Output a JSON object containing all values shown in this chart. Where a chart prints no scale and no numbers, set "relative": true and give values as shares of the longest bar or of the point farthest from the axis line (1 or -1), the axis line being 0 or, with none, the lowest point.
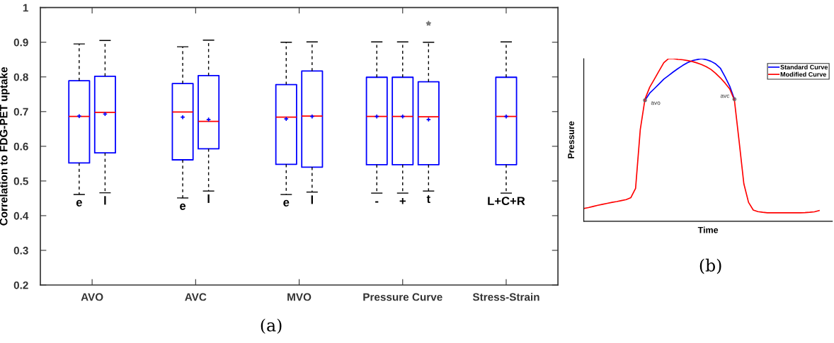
{
  "chart_data": [
    {
      "type": "box",
      "ylabel": "Correlation to FDG-PET uptake",
      "categories": [
        "AVO",
        "AVC",
        "MVO",
        "Pressure Curve",
        "Stress-Strain"
      ],
      "ylim": [
        0.2,
        1
      ],
      "yticks": [
        0.2,
        0.3,
        0.4,
        0.5,
        0.6,
        0.7,
        0.8,
        0.9,
        1
      ],
      "grid": false,
      "marker": "cross",
      "series": [
        {
          "color": "#0000ff",
          "boxes": [
            {
              "low": 0.461,
              "q1": 0.552,
              "median": 0.686,
              "q3": 0.789,
              "high": 0.895,
              "mean": 0.687
            },
            {
              "low": 0.451,
              "q1": 0.561,
              "median": 0.699,
              "q3": 0.781,
              "high": 0.887,
              "mean": 0.684
            },
            {
              "low": 0.461,
              "q1": 0.548,
              "median": 0.684,
              "q3": 0.778,
              "high": 0.9,
              "mean": 0.679
            },
            {
              "low": 0.465,
              "q1": 0.547,
              "median": 0.686,
              "q3": 0.799,
              "high": 0.901,
              "mean": 0.686
            },
            {
              "low": 0.465,
              "q1": 0.547,
              "median": 0.686,
              "q3": 0.799,
              "high": 0.901,
              "mean": 0.686
            }
          ]
        },
        {
          "color": "#0000ff",
          "boxes": [
            {
              "low": 0.466,
              "q1": 0.581,
              "median": 0.698,
              "q3": 0.802,
              "high": 0.905,
              "mean": 0.693
            },
            {
              "low": 0.471,
              "q1": 0.593,
              "median": 0.672,
              "q3": 0.804,
              "high": 0.906,
              "mean": 0.677
            },
            {
              "low": 0.468,
              "q1": 0.54,
              "median": 0.687,
              "q3": 0.817,
              "high": 0.901,
              "mean": 0.686
            },
            {
              "low": 0.465,
              "q1": 0.547,
              "median": 0.686,
              "q3": 0.799,
              "high": 0.901,
              "mean": 0.686
            },
            null
          ]
        },
        {
          "color": "#0000ff",
          "boxes": [
            null,
            null,
            null,
            {
              "low": 0.471,
              "q1": 0.547,
              "median": 0.685,
              "q3": 0.786,
              "high": 0.9,
              "mean": 0.677,
              "outliers": [
                0.954
              ]
            },
            null
          ]
        }
      ],
      "annotations": [
        "e",
        "l",
        "e",
        "l",
        "e",
        "l",
        "-",
        "+",
        "t",
        "L+C+R",
        "(a)"
      ]
    },
    {
      "type": "line",
      "relative": true,
      "xlabel": "Time",
      "ylabel": "Pressure",
      "legend": "top right",
      "categories": [
        null,
        null,
        null,
        null,
        null,
        null,
        null,
        null,
        null,
        null,
        null,
        null,
        null,
        null,
        null,
        null,
        null,
        null,
        null,
        null,
        null,
        null,
        null,
        null,
        null,
        null,
        null,
        null,
        null,
        null,
        null,
        null,
        null,
        null,
        null,
        null,
        null,
        null,
        null,
        null,
        null,
        null,
        null,
        null,
        null,
        null,
        null,
        null,
        null,
        null,
        null
      ],
      "series": [
        {
          "name": "Standard Curve",
          "color": "#0000ff",
          "values": [
            null,
            null,
            null,
            null,
            null,
            null,
            null,
            null,
            null,
            null,
            null,
            null,
            null,
            0.744,
            0.788,
            0.816,
            0.845,
            0.874,
            0.896,
            0.918,
            0.939,
            0.958,
            0.975,
            0.987,
            0.994,
            1.0,
            0.994,
            0.984,
            0.968,
            0.942,
            0.889,
            0.831,
            0.751,
            null,
            null,
            null,
            null,
            null,
            null,
            null,
            null,
            null,
            null,
            null,
            null,
            null,
            null,
            null,
            null,
            null,
            null
          ]
        },
        {
          "name": "Modified Curve",
          "color": "#ff0000",
          "values": [
            0.078,
            0.084,
            0.091,
            0.098,
            0.104,
            0.11,
            0.116,
            0.121,
            0.127,
            0.133,
            0.145,
            0.202,
            0.564,
            0.751,
            0.824,
            0.874,
            0.925,
            0.975,
            1.0,
            1.0,
            0.996,
            0.993,
            0.988,
            0.983,
            0.974,
            0.964,
            0.951,
            0.934,
            0.91,
            0.882,
            0.85,
            0.814,
            0.744,
            0.491,
            0.231,
            0.116,
            0.069,
            0.059,
            0.055,
            0.052,
            0.052,
            0.052,
            0.052,
            0.052,
            0.052,
            0.052,
            0.052,
            0.053,
            0.055,
            0.058,
            0.066
          ]
        }
      ],
      "annotations": [
        "avo",
        "avc",
        "(b)"
      ]
    }
  ]
}
